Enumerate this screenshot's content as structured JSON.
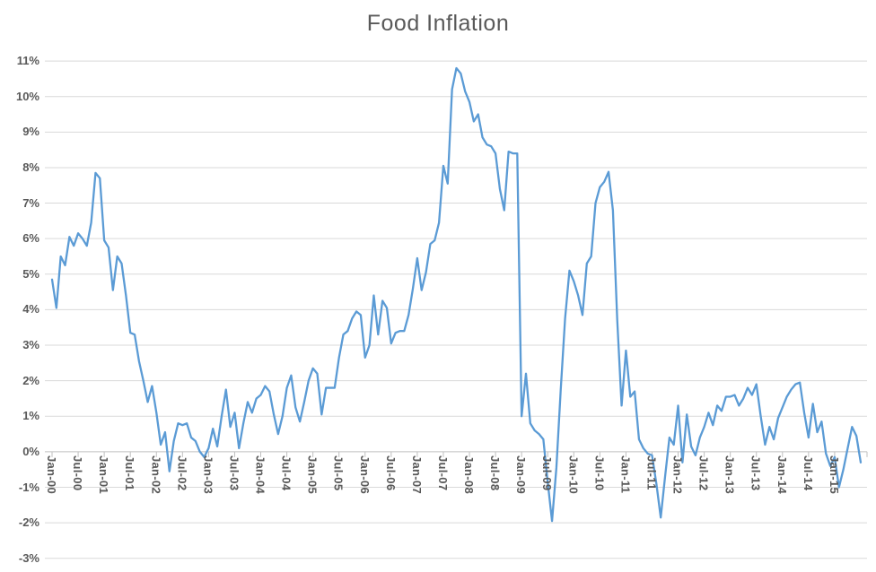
{
  "title": "Food Inflation",
  "chart_data": {
    "type": "line",
    "title": "Food Inflation",
    "series_name": "Food Inflation",
    "unit": "percent",
    "frequency": "monthly",
    "x_start": "Jan-2000",
    "x_end": "Jul-2015",
    "legend": "none",
    "grid": "horizontal",
    "ylim": [
      -3,
      11
    ],
    "y_tick_labels": [
      "11%",
      "10%",
      "9%",
      "8%",
      "7%",
      "6%",
      "5%",
      "4%",
      "3%",
      "2%",
      "1%",
      "0%",
      "-1%",
      "-2%",
      "-3%"
    ],
    "x_tick_labels": [
      "Jan-00",
      "Jul-00",
      "Jan-01",
      "Jul-01",
      "Jan-02",
      "Jul-02",
      "Jan-03",
      "Jul-03",
      "Jan-04",
      "Jul-04",
      "Jan-05",
      "Jul-05",
      "Jan-06",
      "Jul-06",
      "Jan-07",
      "Jul-07",
      "Jan-08",
      "Jul-08",
      "Jan-09",
      "Jul-09",
      "Jan-10",
      "Jul-10",
      "Jan-11",
      "Jul-11",
      "Jan-12",
      "Jul-12",
      "Jan-13",
      "Jul-13",
      "Jan-14",
      "Jul-14",
      "Jan-15"
    ],
    "values": [
      4.85,
      4.05,
      5.5,
      5.25,
      6.05,
      5.8,
      6.15,
      6.0,
      5.8,
      6.45,
      7.85,
      7.7,
      5.95,
      5.75,
      4.55,
      5.5,
      5.3,
      4.4,
      3.35,
      3.3,
      2.55,
      2.0,
      1.4,
      1.85,
      1.1,
      0.2,
      0.55,
      -0.55,
      0.3,
      0.8,
      0.75,
      0.8,
      0.4,
      0.3,
      0.0,
      -0.15,
      0.1,
      0.65,
      0.15,
      1.0,
      1.75,
      0.7,
      1.1,
      0.1,
      0.8,
      1.4,
      1.1,
      1.5,
      1.6,
      1.85,
      1.7,
      1.05,
      0.5,
      1.0,
      1.8,
      2.15,
      1.25,
      0.85,
      1.4,
      2.0,
      2.35,
      2.2,
      1.05,
      1.8,
      1.8,
      1.8,
      2.65,
      3.3,
      3.4,
      3.75,
      3.95,
      3.85,
      2.65,
      3.0,
      4.4,
      3.3,
      4.25,
      4.05,
      3.05,
      3.35,
      3.4,
      3.4,
      3.85,
      4.6,
      5.45,
      4.55,
      5.05,
      5.85,
      5.95,
      6.45,
      8.05,
      7.55,
      10.2,
      10.8,
      10.65,
      10.15,
      9.85,
      9.3,
      9.5,
      8.85,
      8.65,
      8.6,
      8.4,
      7.4,
      6.8,
      8.45,
      8.4,
      8.4,
      1.0,
      2.2,
      0.8,
      0.6,
      0.5,
      0.35,
      -0.85,
      -1.95,
      -0.45,
      1.75,
      3.75,
      5.1,
      4.8,
      4.4,
      3.85,
      5.3,
      5.5,
      7.0,
      7.45,
      7.6,
      7.88,
      6.8,
      3.7,
      1.3,
      2.85,
      1.55,
      1.7,
      0.35,
      0.1,
      -0.05,
      -0.1,
      -0.9,
      -1.85,
      -0.7,
      0.4,
      0.2,
      1.3,
      -0.3,
      1.05,
      0.15,
      -0.1,
      0.4,
      0.7,
      1.1,
      0.75,
      1.3,
      1.15,
      1.55,
      1.55,
      1.6,
      1.3,
      1.5,
      1.8,
      1.6,
      1.9,
      1.0,
      0.2,
      0.7,
      0.35,
      0.95,
      1.25,
      1.55,
      1.75,
      1.9,
      1.95,
      1.1,
      0.4,
      1.35,
      0.55,
      0.85,
      -0.05,
      -0.4,
      -0.15,
      -1.0,
      -0.5,
      0.1,
      0.7,
      0.45,
      -0.3
    ],
    "colors": {
      "line": "#5B9BD5",
      "gridline": "#D9D9D9",
      "axis": "#BFBFBF",
      "labels": "#595959",
      "title": "#595959",
      "background": "#FFFFFF"
    }
  }
}
